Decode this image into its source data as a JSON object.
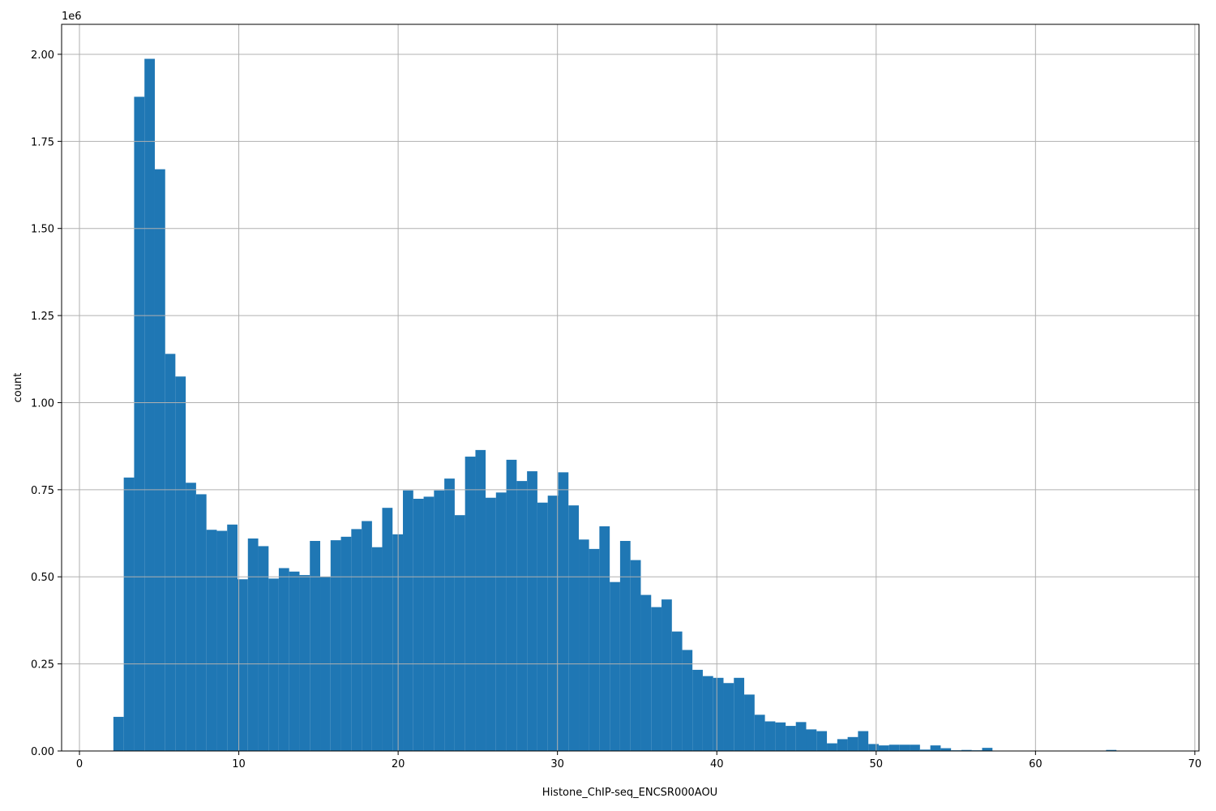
{
  "chart_data": {
    "type": "histogram",
    "x_label": "Histone_ChIP-seq_ENCSR000AOU",
    "y_label": "count",
    "y_offset_label": "1e6",
    "color": "#1f77b4",
    "grid": true,
    "bins": [
      2.13,
      2.78,
      3.43,
      4.08,
      4.73,
      5.38,
      6.02,
      6.67,
      7.32,
      7.97,
      8.62,
      9.27,
      9.92,
      10.57,
      11.22,
      11.87,
      12.51,
      13.16,
      13.81,
      14.46,
      15.11,
      15.76,
      16.41,
      17.06,
      17.71,
      18.36,
      19.0,
      19.65,
      20.3,
      20.95,
      21.6,
      22.25,
      22.9,
      23.55,
      24.2,
      24.85,
      25.49,
      26.14,
      26.79,
      27.44,
      28.09,
      28.74,
      29.39,
      30.04,
      30.69,
      31.34,
      31.98,
      32.63,
      33.28,
      33.93,
      34.58,
      35.23,
      35.88,
      36.53,
      37.18,
      37.83,
      38.47,
      39.12,
      39.77,
      40.42,
      41.07,
      41.72,
      42.37,
      43.02,
      43.67,
      44.32,
      44.96,
      45.61,
      46.26,
      46.91,
      47.56,
      48.21,
      48.86,
      49.51,
      50.16,
      50.81,
      51.45,
      52.1,
      52.75,
      53.4,
      54.05,
      54.7,
      55.35,
      56.0,
      56.65,
      57.3,
      57.94,
      58.59,
      59.24,
      59.89,
      60.54,
      61.19,
      61.84,
      62.49,
      63.14,
      63.79,
      64.43,
      65.08,
      65.73,
      66.38,
      67.03
    ],
    "values": [
      98000,
      785000,
      1878000,
      1987000,
      1670000,
      1140000,
      1075000,
      770000,
      737000,
      635000,
      632000,
      650000,
      493000,
      610000,
      588000,
      495000,
      525000,
      515000,
      505000,
      603000,
      500000,
      605000,
      615000,
      637000,
      660000,
      585000,
      698000,
      622000,
      748000,
      724000,
      730000,
      748000,
      782000,
      677000,
      845000,
      864000,
      727000,
      742000,
      836000,
      775000,
      803000,
      713000,
      733000,
      800000,
      705000,
      607000,
      580000,
      645000,
      485000,
      603000,
      548000,
      448000,
      413000,
      435000,
      343000,
      290000,
      233000,
      215000,
      210000,
      195000,
      210000,
      162000,
      104000,
      85000,
      82000,
      72000,
      83000,
      62000,
      57000,
      22000,
      34000,
      40000,
      57000,
      20000,
      16000,
      18000,
      18000,
      18000,
      4000,
      16000,
      8000,
      2000,
      3000,
      2000,
      9000,
      1000,
      1000,
      0,
      0,
      0,
      0,
      0,
      0,
      1000,
      0,
      1000,
      3000,
      1000,
      0,
      0
    ],
    "xlim": [
      -1.12,
      70.26
    ],
    "xticks": [
      0,
      10,
      20,
      30,
      40,
      50,
      60,
      70
    ],
    "ylim": [
      0,
      2086000
    ],
    "yticks": [
      {
        "value": 0,
        "label": "0.00"
      },
      {
        "value": 250000,
        "label": "0.25"
      },
      {
        "value": 500000,
        "label": "0.50"
      },
      {
        "value": 750000,
        "label": "0.75"
      },
      {
        "value": 1000000,
        "label": "1.00"
      },
      {
        "value": 1250000,
        "label": "1.25"
      },
      {
        "value": 1500000,
        "label": "1.50"
      },
      {
        "value": 1750000,
        "label": "1.75"
      },
      {
        "value": 2000000,
        "label": "2.00"
      }
    ]
  }
}
